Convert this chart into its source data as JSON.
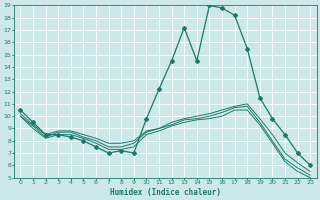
{
  "title": "",
  "xlabel": "Humidex (Indice chaleur)",
  "ylabel": "",
  "background_color": "#cde8e8",
  "grid_color": "#ffffff",
  "line_color": "#1a7a6a",
  "xlim": [
    -0.5,
    23.5
  ],
  "ylim": [
    5,
    19
  ],
  "xticks": [
    0,
    1,
    2,
    3,
    4,
    5,
    6,
    7,
    8,
    9,
    10,
    11,
    12,
    13,
    14,
    15,
    16,
    17,
    18,
    19,
    20,
    21,
    22,
    23
  ],
  "yticks": [
    5,
    6,
    7,
    8,
    9,
    10,
    11,
    12,
    13,
    14,
    15,
    16,
    17,
    18,
    19
  ],
  "series": [
    {
      "x": [
        0,
        1,
        2,
        3,
        4,
        5,
        6,
        7,
        8,
        9,
        10,
        11,
        12,
        13,
        14,
        15,
        16,
        17,
        18,
        19,
        20,
        21,
        22,
        23
      ],
      "y": [
        10.5,
        9.5,
        8.5,
        8.5,
        8.3,
        8.0,
        7.5,
        7.0,
        7.2,
        7.0,
        9.8,
        12.2,
        14.5,
        17.2,
        14.5,
        19.0,
        18.8,
        18.2,
        15.5,
        11.5,
        9.8,
        8.5,
        7.0,
        6.0
      ],
      "marker": true
    },
    {
      "x": [
        0,
        1,
        2,
        3,
        4,
        5,
        6,
        7,
        8,
        9,
        10,
        11,
        12,
        13,
        14,
        15,
        16,
        17,
        18,
        19,
        20,
        21,
        22,
        23
      ],
      "y": [
        10.2,
        9.3,
        8.5,
        8.8,
        8.8,
        8.5,
        8.2,
        7.8,
        7.8,
        8.0,
        8.8,
        9.0,
        9.5,
        9.8,
        10.0,
        10.2,
        10.5,
        10.8,
        11.0,
        9.8,
        8.5,
        7.0,
        6.2,
        5.5
      ],
      "marker": false
    },
    {
      "x": [
        0,
        1,
        2,
        3,
        4,
        5,
        6,
        7,
        8,
        9,
        10,
        11,
        12,
        13,
        14,
        15,
        16,
        17,
        18,
        19,
        20,
        21,
        22,
        23
      ],
      "y": [
        10.0,
        9.2,
        8.3,
        8.7,
        8.7,
        8.3,
        8.0,
        7.5,
        7.5,
        7.8,
        8.7,
        9.0,
        9.3,
        9.7,
        9.8,
        10.0,
        10.3,
        10.7,
        10.8,
        9.5,
        8.0,
        6.5,
        5.8,
        5.2
      ],
      "marker": false
    },
    {
      "x": [
        0,
        1,
        2,
        3,
        4,
        5,
        6,
        7,
        8,
        9,
        10,
        11,
        12,
        13,
        14,
        15,
        16,
        17,
        18,
        19,
        20,
        21,
        22,
        23
      ],
      "y": [
        10.0,
        9.0,
        8.2,
        8.5,
        8.5,
        8.2,
        7.8,
        7.3,
        7.3,
        7.5,
        8.5,
        8.8,
        9.2,
        9.5,
        9.7,
        9.8,
        10.0,
        10.5,
        10.5,
        9.3,
        7.8,
        6.3,
        5.5,
        5.0
      ],
      "marker": false
    }
  ]
}
